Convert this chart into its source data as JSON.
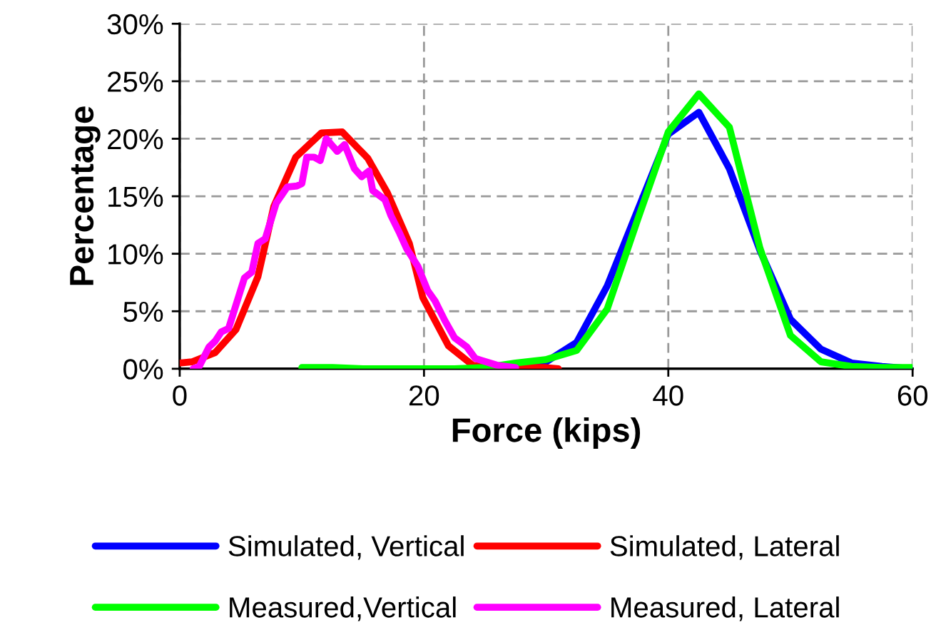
{
  "chart_data": {
    "type": "line",
    "xlabel": "Force (kips)",
    "ylabel": "Percentage",
    "xlim": [
      0,
      60
    ],
    "xticks": [
      0,
      20,
      40,
      60
    ],
    "ylim": [
      0,
      30
    ],
    "yticks": [
      {
        "value": 0,
        "label": "0%"
      },
      {
        "value": 5,
        "label": "5%"
      },
      {
        "value": 10,
        "label": "10%"
      },
      {
        "value": 15,
        "label": "15%"
      },
      {
        "value": 20,
        "label": "20%"
      },
      {
        "value": 25,
        "label": "25%"
      },
      {
        "value": 30,
        "label": "30%"
      }
    ],
    "grid": true,
    "legend": "bottom",
    "marker": "none",
    "line_style": "solid",
    "series": [
      {
        "name": "Simulated, Vertical",
        "color": "#0000ff",
        "x": [
          25,
          30,
          32.5,
          35,
          37.5,
          40,
          42.5,
          45,
          47.5,
          50,
          52.5,
          55,
          57.5,
          60
        ],
        "values": [
          0,
          0.6,
          2.3,
          7.2,
          13.8,
          20.4,
          22.3,
          17.4,
          10.3,
          4.3,
          1.7,
          0.5,
          0.2,
          0
        ]
      },
      {
        "name": "Simulated, Lateral",
        "color": "#ff0000",
        "x": [
          0,
          1.0,
          2.9,
          4.6,
          6.4,
          7.7,
          9.5,
          11.6,
          13.3,
          15.4,
          17.0,
          18.8,
          19.9,
          22.0,
          24.0,
          28.0,
          30.0,
          31.0
        ],
        "values": [
          0.5,
          0.6,
          1.4,
          3.4,
          8.0,
          14.1,
          18.4,
          20.5,
          20.6,
          18.3,
          15.3,
          10.9,
          6.2,
          2.0,
          0.3,
          0.1,
          0.1,
          0
        ]
      },
      {
        "name": "Measured,Vertical",
        "color": "#00ff00",
        "x": [
          10,
          12.5,
          15,
          17.5,
          20,
          22.5,
          25,
          27.5,
          30,
          32.5,
          35,
          37.5,
          40,
          42.5,
          45,
          47.5,
          50,
          52.5,
          55,
          57.5,
          60
        ],
        "values": [
          0.1,
          0.1,
          0,
          0,
          0,
          0,
          0.1,
          0.5,
          0.8,
          1.6,
          5.2,
          13.0,
          20.6,
          23.9,
          21.0,
          10.5,
          2.9,
          0.6,
          0.2,
          0.1,
          0.1
        ]
      },
      {
        "name": "Measured, Lateral",
        "color": "#ff00ff",
        "x": [
          1.1,
          1.6,
          2.4,
          2.9,
          3.4,
          4.0,
          5.3,
          5.9,
          6.4,
          7.0,
          7.9,
          8.8,
          9.6,
          10.0,
          10.4,
          11.0,
          11.5,
          12.0,
          12.9,
          13.5,
          14.3,
          14.9,
          15.5,
          15.8,
          16.8,
          17.3,
          18.0,
          18.6,
          19.5,
          20.3,
          20.9,
          21.7,
          22.5,
          23.5,
          24.2,
          24.8,
          26.0,
          27.5
        ],
        "values": [
          0,
          0.2,
          1.9,
          2.4,
          3.2,
          3.5,
          7.9,
          8.4,
          10.9,
          11.3,
          14.4,
          15.8,
          15.9,
          16.1,
          18.4,
          18.4,
          18.1,
          20.0,
          18.9,
          19.5,
          17.4,
          16.7,
          17.2,
          15.5,
          14.7,
          13.3,
          11.8,
          10.4,
          8.9,
          6.8,
          5.9,
          4.2,
          2.7,
          1.9,
          0.9,
          0.7,
          0.3,
          0.1
        ]
      }
    ]
  }
}
